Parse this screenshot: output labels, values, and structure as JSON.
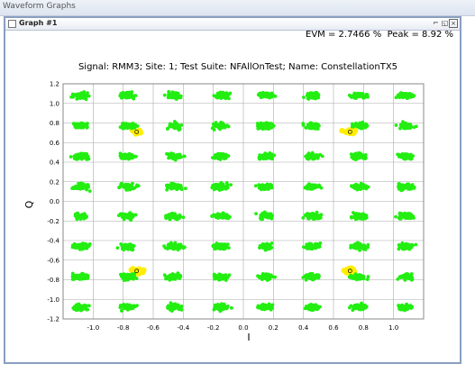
{
  "app": {
    "title": "Waveform Graphs"
  },
  "graph_window": {
    "title": "Graph #1",
    "minimize": "⌐",
    "maximize": "◱",
    "close": "×"
  },
  "metrics": {
    "evm": "EVM = 2.7466 %",
    "peak": "Peak = 8.92 %"
  },
  "colors": {
    "points": "#22ee11",
    "reference": "#ffee00",
    "grid": "#aaaaaa",
    "marker": "#000000"
  },
  "chart_data": {
    "type": "scatter",
    "title": "Signal: RMM3; Site: 1; Test Suite: NFAllOnTest; Name: ConstellationTX5",
    "xlabel": "I",
    "ylabel": "Q",
    "xlim": [
      -1.2,
      1.2
    ],
    "ylim": [
      -1.2,
      1.2
    ],
    "grid": true,
    "xticks": [
      -1.0,
      -0.8,
      -0.6,
      -0.4,
      -0.2,
      0.0,
      0.2,
      0.4,
      0.6,
      0.8,
      1.0
    ],
    "xtick_labels": [
      "-1.0",
      "-0.8",
      "-0.6",
      "-0.4",
      "-0.2",
      "0.0",
      "0.2",
      "0.4",
      "0.6",
      "0.8",
      "1.0"
    ],
    "yticks": [
      1.2,
      1.0,
      0.8,
      0.6,
      0.4,
      0.2,
      0.0,
      -0.2,
      -0.4,
      -0.6,
      -0.8,
      -1.0,
      -1.2
    ],
    "ytick_labels": [
      "1.2",
      "1.0",
      "0.8",
      "0.6",
      "0.4",
      "0.2",
      "0.0",
      "-0.2",
      "-0.4",
      "-0.6",
      "-0.8",
      "-1.0",
      "-1.2"
    ],
    "series": [
      {
        "levels_i": [
          -1.08,
          -0.77,
          -0.46,
          -0.15,
          0.15,
          0.46,
          0.77,
          1.08
        ],
        "levels_q": [
          1.08,
          0.77,
          0.46,
          0.15,
          -0.15,
          -0.46,
          -0.77,
          -1.08
        ],
        "spread_i": 0.05,
        "spread_q": 0.03,
        "points_per_cluster": 60
      },
      {
        "points": [
          [
            -0.71,
            0.71
          ],
          [
            0.71,
            0.71
          ],
          [
            -0.71,
            -0.71
          ],
          [
            0.71,
            -0.71
          ]
        ]
      }
    ]
  }
}
